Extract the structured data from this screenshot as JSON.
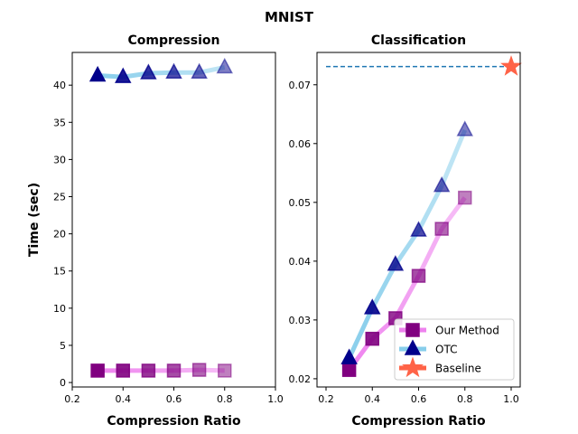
{
  "suptitle": "MNIST",
  "chart_data": [
    {
      "type": "line",
      "title": "Compression",
      "xlabel": "Compression Ratio",
      "ylabel": "Time (sec)",
      "xlim": [
        0.2,
        1.0
      ],
      "ylim": [
        -0.6,
        44.4
      ],
      "xticks": [
        0.2,
        0.4,
        0.6,
        0.8,
        1.0
      ],
      "xtick_labels": [
        "0.2",
        "0.4",
        "0.6",
        "0.8",
        "1.0"
      ],
      "yticks": [
        0,
        5,
        10,
        15,
        20,
        25,
        30,
        35,
        40
      ],
      "ytick_labels": [
        "0",
        "5",
        "10",
        "15",
        "20",
        "25",
        "30",
        "35",
        "40"
      ],
      "x": [
        0.3,
        0.4,
        0.5,
        0.6,
        0.7,
        0.8
      ],
      "series": [
        {
          "name": "Our Method",
          "values": [
            1.6,
            1.6,
            1.6,
            1.6,
            1.7,
            1.6
          ],
          "line_color": "#ee82ee",
          "marker_color": "#800080",
          "marker": "square"
        },
        {
          "name": "OTC",
          "values": [
            41.3,
            41.1,
            41.6,
            41.7,
            41.7,
            42.4
          ],
          "line_color": "#87ceeb",
          "marker_color": "#00008b",
          "marker": "triangle"
        }
      ],
      "grid": false
    },
    {
      "type": "line",
      "title": "Classification",
      "xlabel": "Compression Ratio",
      "ylabel": "",
      "xlim": [
        0.161,
        1.039
      ],
      "ylim": [
        0.0186,
        0.0755
      ],
      "xticks": [
        0.2,
        0.4,
        0.6,
        0.8,
        1.0
      ],
      "xtick_labels": [
        "0.2",
        "0.4",
        "0.6",
        "0.8",
        "1.0"
      ],
      "yticks": [
        0.02,
        0.03,
        0.04,
        0.05,
        0.06,
        0.07
      ],
      "ytick_labels": [
        "0.02",
        "0.03",
        "0.04",
        "0.05",
        "0.06",
        "0.07"
      ],
      "x": [
        0.3,
        0.4,
        0.5,
        0.6,
        0.7,
        0.8
      ],
      "series": [
        {
          "name": "Our Method",
          "values": [
            0.0215,
            0.0268,
            0.0303,
            0.0375,
            0.0455,
            0.0508
          ],
          "line_color": "#ee82ee",
          "marker_color": "#800080",
          "marker": "square"
        },
        {
          "name": "OTC",
          "values": [
            0.0235,
            0.032,
            0.0394,
            0.0452,
            0.0528,
            0.0623
          ],
          "line_color": "#87ceeb",
          "marker_color": "#00008b",
          "marker": "triangle"
        }
      ],
      "baseline": {
        "name": "Baseline",
        "x": 1.0,
        "value": 0.0731,
        "color": "#ff6347",
        "line_color": "#1f77b4"
      },
      "legend": {
        "placement": "lower-right",
        "entries": [
          "Our Method",
          "OTC",
          "Baseline"
        ]
      },
      "grid": false
    }
  ]
}
